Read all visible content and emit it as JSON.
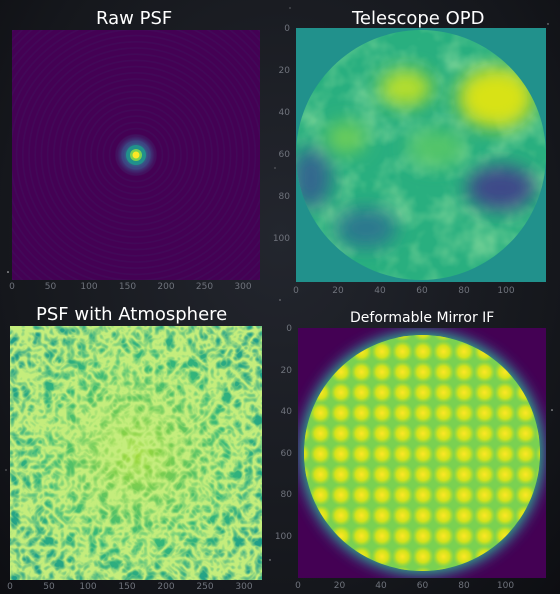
{
  "panels": {
    "raw_psf": {
      "title": "Raw PSF",
      "x_ticks": [
        "0",
        "50",
        "100",
        "150",
        "200",
        "250",
        "300"
      ]
    },
    "telescope_opd": {
      "title": "Telescope OPD",
      "x_ticks": [
        "0",
        "20",
        "40",
        "60",
        "80",
        "100"
      ],
      "y_ticks": [
        "0",
        "20",
        "40",
        "60",
        "80",
        "100"
      ]
    },
    "psf_atmosphere": {
      "title": "PSF with Atmosphere",
      "x_ticks": [
        "0",
        "50",
        "100",
        "150",
        "200",
        "250",
        "300"
      ]
    },
    "deformable_mirror": {
      "title": "Deformable Mirror IF",
      "x_ticks": [
        "0",
        "20",
        "40",
        "60",
        "80",
        "100"
      ],
      "y_ticks": [
        "0",
        "20",
        "40",
        "60",
        "80",
        "100"
      ]
    }
  },
  "colors": {
    "viridis_dark": "#440154",
    "viridis_mid": "#21918c",
    "viridis_light": "#fde725",
    "background": "#15171c"
  }
}
